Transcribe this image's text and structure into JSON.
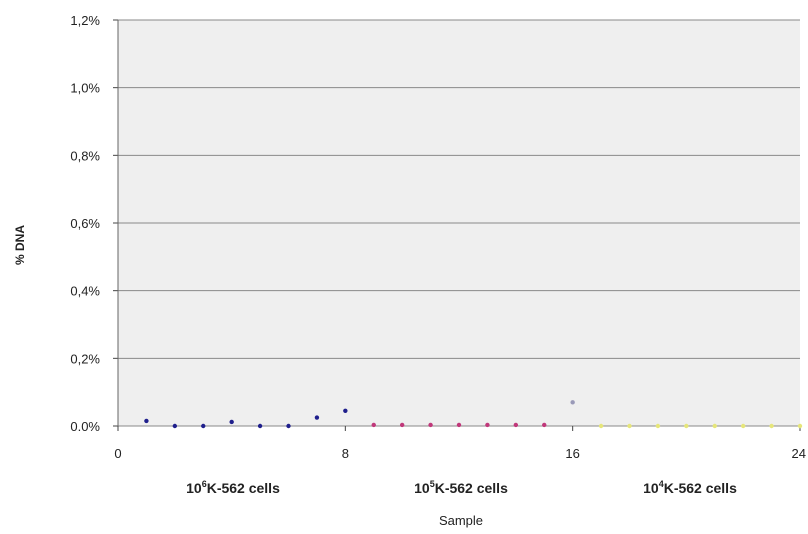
{
  "chart_data": {
    "type": "scatter",
    "xlabel": "Sample",
    "ylabel": "% DNA",
    "xlim": [
      0,
      24
    ],
    "ylim": [
      0,
      1.2
    ],
    "x_ticks": [
      0,
      8,
      16,
      24
    ],
    "x_tick_labels": [
      "0",
      "8",
      "16",
      "24"
    ],
    "y_ticks": [
      0,
      0.2,
      0.4,
      0.6,
      0.8,
      1.0,
      1.2
    ],
    "y_tick_labels": [
      "0.0%",
      "0,2%",
      "0,4%",
      "0,6%",
      "0,8%",
      "1,0%",
      "1,2%"
    ],
    "grid": true,
    "plot_background": "#efefef",
    "gridline_color": "#8a8a8a",
    "series": [
      {
        "color": "#1f1f8c",
        "x": [
          1,
          2,
          3,
          4,
          5,
          6,
          7,
          8
        ],
        "y": [
          0.015,
          0.0,
          0.0,
          0.012,
          0.0,
          0.0,
          0.025,
          0.045
        ]
      },
      {
        "color": "#c0387a",
        "x": [
          9,
          10,
          11,
          12,
          13,
          14,
          15
        ],
        "y": [
          0.003,
          0.003,
          0.003,
          0.003,
          0.003,
          0.003,
          0.003
        ]
      },
      {
        "color": "#9a9ab8",
        "x": [
          16
        ],
        "y": [
          0.07
        ]
      },
      {
        "color": "#e6e67a",
        "x": [
          17,
          18,
          19,
          20,
          21,
          22,
          23,
          24
        ],
        "y": [
          0.0,
          0.0,
          0.0,
          0.0,
          0.0,
          0.0,
          0.0,
          0.0
        ]
      }
    ],
    "groups": [
      {
        "base": "10",
        "exp": "6",
        "rest": "K-562 cells"
      },
      {
        "base": "10",
        "exp": "5",
        "rest": "K-562 cells"
      },
      {
        "base": "10",
        "exp": "4",
        "rest": "K-562 cells"
      }
    ]
  }
}
